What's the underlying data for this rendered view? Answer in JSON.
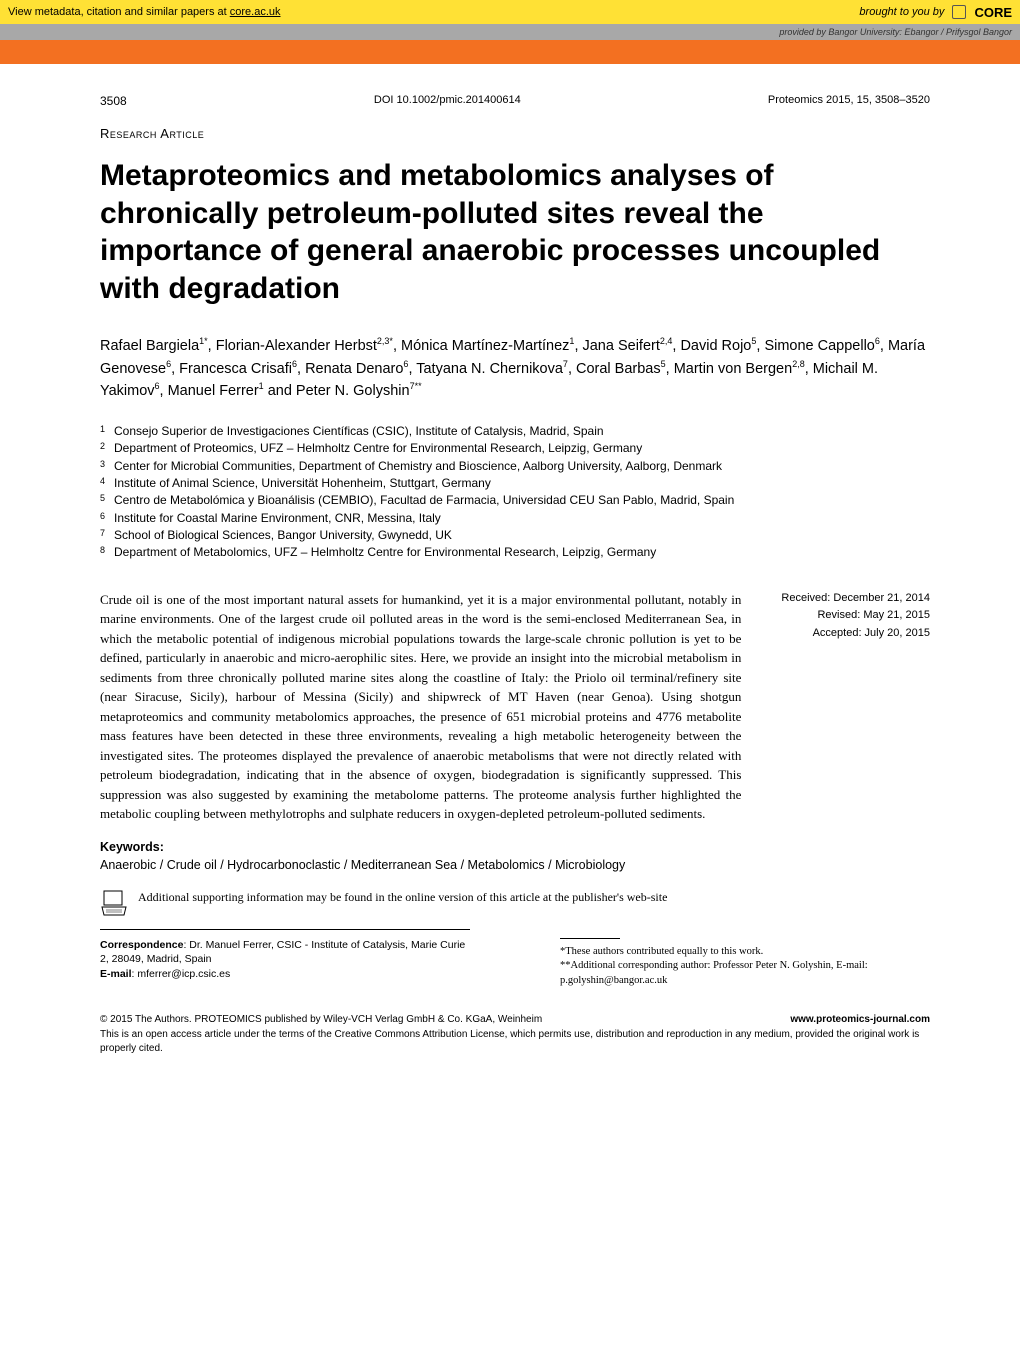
{
  "banner": {
    "left_text": "View metadata, citation and similar papers at ",
    "link_text": "core.ac.uk",
    "right_text": "brought to you by",
    "logo_text": "CORE"
  },
  "provider": {
    "label": "provided by ",
    "name": "Bangor University: Ebangor / Prifysgol Bangor"
  },
  "header": {
    "article_number": "3508",
    "doi": "DOI 10.1002/pmic.201400614",
    "journal": "Proteomics 2015, 15, 3508–3520"
  },
  "article_type": "Research Article",
  "title": "Metaproteomics and metabolomics analyses of chronically petroleum-polluted sites reveal the importance of general anaerobic processes uncoupled with degradation",
  "authors_html": "Rafael Bargiela<sup>1*</sup>, Florian-Alexander Herbst<sup>2,3*</sup>, Mónica Martínez-Martínez<sup>1</sup>, Jana Seifert<sup>2,4</sup>, David Rojo<sup>5</sup>, Simone Cappello<sup>6</sup>, María Genovese<sup>6</sup>, Francesca Crisafi<sup>6</sup>, Renata Denaro<sup>6</sup>, Tatyana N. Chernikova<sup>7</sup>, Coral Barbas<sup>5</sup>, Martin von Bergen<sup>2,8</sup>, Michail M. Yakimov<sup>6</sup>, Manuel Ferrer<sup>1</sup> and Peter N. Golyshin<sup>7**</sup>",
  "affiliations": [
    {
      "num": "1",
      "text": "Consejo Superior de Investigaciones Científicas (CSIC), Institute of Catalysis, Madrid, Spain"
    },
    {
      "num": "2",
      "text": "Department of Proteomics, UFZ – Helmholtz Centre for Environmental Research, Leipzig, Germany"
    },
    {
      "num": "3",
      "text": "Center for Microbial Communities, Department of Chemistry and Bioscience, Aalborg University, Aalborg, Denmark"
    },
    {
      "num": "4",
      "text": "Institute of Animal Science, Universität Hohenheim, Stuttgart, Germany"
    },
    {
      "num": "5",
      "text": "Centro de Metabolómica y Bioanálisis (CEMBIO), Facultad de Farmacia, Universidad CEU San Pablo, Madrid, Spain"
    },
    {
      "num": "6",
      "text": "Institute for Coastal Marine Environment, CNR, Messina, Italy"
    },
    {
      "num": "7",
      "text": "School of Biological Sciences, Bangor University, Gwynedd, UK"
    },
    {
      "num": "8",
      "text": "Department of Metabolomics, UFZ – Helmholtz Centre for Environmental Research, Leipzig, Germany"
    }
  ],
  "abstract": "Crude oil is one of the most important natural assets for humankind, yet it is a major environmental pollutant, notably in marine environments. One of the largest crude oil polluted areas in the word is the semi-enclosed Mediterranean Sea, in which the metabolic potential of indigenous microbial populations towards the large-scale chronic pollution is yet to be defined, particularly in anaerobic and micro-aerophilic sites. Here, we provide an insight into the microbial metabolism in sediments from three chronically polluted marine sites along the coastline of Italy: the Priolo oil terminal/refinery site (near Siracuse, Sicily), harbour of Messina (Sicily) and shipwreck of MT Haven (near Genoa). Using shotgun metaproteomics and community metabolomics approaches, the presence of 651 microbial proteins and 4776 metabolite mass features have been detected in these three environments, revealing a high metabolic heterogeneity between the investigated sites. The proteomes displayed the prevalence of anaerobic metabolisms that were not directly related with petroleum biodegradation, indicating that in the absence of oxygen, biodegradation is significantly suppressed. This suppression was also suggested by examining the metabolome patterns. The proteome analysis further highlighted the metabolic coupling between methylotrophs and sulphate reducers in oxygen-depleted petroleum-polluted sediments.",
  "dates": {
    "received": "Received: December 21, 2014",
    "revised": "Revised: May 21, 2015",
    "accepted": "Accepted: July 20, 2015"
  },
  "keywords_label": "Keywords:",
  "keywords": "Anaerobic / Crude oil / Hydrocarbonoclastic / Mediterranean Sea / Metabolomics / Microbiology",
  "supp_info": "Additional supporting information may be found in the online version of this article at the publisher's web-site",
  "correspondence": {
    "label": "Correspondence",
    "text": ": Dr. Manuel Ferrer, CSIC - Institute of Catalysis, Marie Curie 2, 28049, Madrid, Spain",
    "email_label": "E-mail",
    "email": ": mferrer@icp.csic.es"
  },
  "footnotes": {
    "note1": "*These authors contributed equally to this work.",
    "note2": "**Additional corresponding author: Professor Peter N. Golyshin, E-mail: p.golyshin@bangor.ac.uk"
  },
  "copyright": {
    "symbol": "© 2015 The Authors. PROTEOMICS published by Wiley-VCH Verlag GmbH & Co. KGaA, Weinheim",
    "url": "www.proteomics-journal.com",
    "license": "This is an open access article under the terms of the Creative Commons Attribution License, which permits use, distribution and reproduction in any medium, provided the original work is properly cited."
  },
  "colors": {
    "banner_bg": "#ffe135",
    "provider_bg": "#a8a8a8",
    "orange_bar": "#f37021"
  }
}
